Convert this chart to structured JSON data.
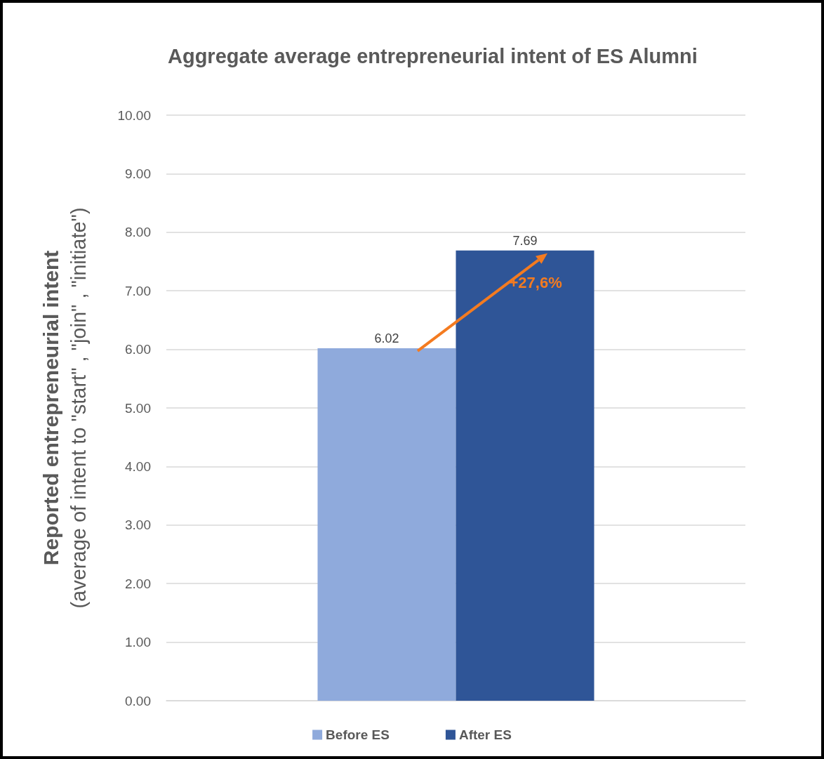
{
  "chart_data": {
    "type": "bar",
    "title": "Aggregate average entrepreneurial intent of ES Alumni",
    "ylabel": "Reported entrepreneurial intent\n(average of intent to \"start\" , \"join\" , \"initiate\")",
    "categories": [
      null
    ],
    "series": [
      {
        "name": "Before ES",
        "color": "#8faadc",
        "values": [
          6.02
        ]
      },
      {
        "name": "After ES",
        "color": "#2f5597",
        "values": [
          7.69
        ]
      }
    ],
    "ylim": [
      0,
      10
    ],
    "yticks": [
      {
        "value": 0,
        "label": "0.00"
      },
      {
        "value": 1,
        "label": "1.00"
      },
      {
        "value": 2,
        "label": "2.00"
      },
      {
        "value": 3,
        "label": "3.00"
      },
      {
        "value": 4,
        "label": "4.00"
      },
      {
        "value": 5,
        "label": "5.00"
      },
      {
        "value": 6,
        "label": "6.00"
      },
      {
        "value": 7,
        "label": "7.00"
      },
      {
        "value": 8,
        "label": "8.00"
      },
      {
        "value": 9,
        "label": "9.00"
      },
      {
        "value": 10,
        "label": "10.00"
      }
    ],
    "annotations": [
      "+27,6%"
    ],
    "data_labels": true,
    "grid": "y",
    "legend": "bottom"
  }
}
